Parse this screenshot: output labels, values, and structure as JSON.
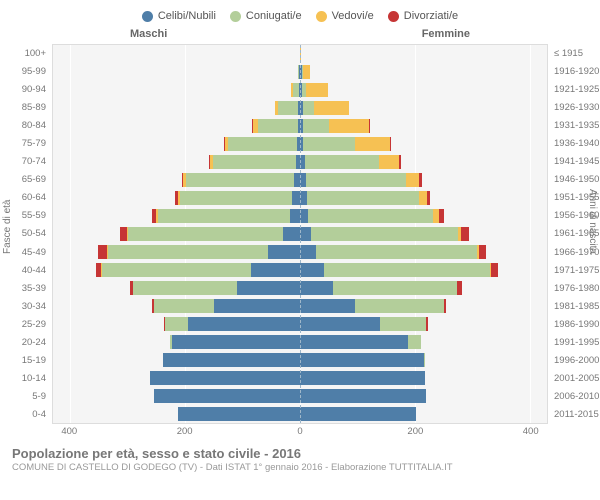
{
  "legend": [
    {
      "label": "Celibi/Nubili",
      "color": "#4f7ea8"
    },
    {
      "label": "Coniugati/e",
      "color": "#b3ce9a"
    },
    {
      "label": "Vedovi/e",
      "color": "#f6c153"
    },
    {
      "label": "Divorziati/e",
      "color": "#c63535"
    }
  ],
  "side_left_label": "Maschi",
  "side_right_label": "Femmine",
  "axis_title_left": "Fasce di età",
  "axis_title_right": "Anni di nascita",
  "title": "Popolazione per età, sesso e stato civile - 2016",
  "subtitle": "COMUNE DI CASTELLO DI GODEGO (TV) - Dati ISTAT 1° gennaio 2016 - Elaborazione TUTTITALIA.IT",
  "x_ticks": [
    -400,
    -200,
    0,
    200,
    400
  ],
  "x_tick_labels": [
    "400",
    "200",
    "0",
    "200",
    "400"
  ],
  "x_max": 430,
  "grid_color": "#ffffff",
  "plot_bg": "#f5f5f5",
  "age_groups": [
    "100+",
    "95-99",
    "90-94",
    "85-89",
    "80-84",
    "75-79",
    "70-74",
    "65-69",
    "60-64",
    "55-59",
    "50-54",
    "45-49",
    "40-44",
    "35-39",
    "30-34",
    "25-29",
    "20-24",
    "15-19",
    "10-14",
    "5-9",
    "0-4"
  ],
  "birth_groups": [
    "≤ 1915",
    "1916-1920",
    "1921-1925",
    "1926-1930",
    "1931-1935",
    "1936-1940",
    "1941-1945",
    "1946-1950",
    "1951-1955",
    "1956-1960",
    "1961-1965",
    "1966-1970",
    "1971-1975",
    "1976-1980",
    "1981-1985",
    "1986-1990",
    "1991-1995",
    "1996-2000",
    "2001-2005",
    "2006-2010",
    "2011-2015"
  ],
  "rows": [
    {
      "m": {
        "celibi": 0,
        "coniugati": 0,
        "vedovi": 0,
        "divorziati": 0
      },
      "f": {
        "celibi": 0,
        "coniugati": 0,
        "vedovi": 2,
        "divorziati": 0
      }
    },
    {
      "m": {
        "celibi": 1,
        "coniugati": 2,
        "vedovi": 0,
        "divorziati": 0
      },
      "f": {
        "celibi": 3,
        "coniugati": 2,
        "vedovi": 12,
        "divorziati": 0
      }
    },
    {
      "m": {
        "celibi": 2,
        "coniugati": 10,
        "vedovi": 4,
        "divorziati": 0
      },
      "f": {
        "celibi": 4,
        "coniugati": 6,
        "vedovi": 38,
        "divorziati": 0
      }
    },
    {
      "m": {
        "celibi": 3,
        "coniugati": 35,
        "vedovi": 6,
        "divorziati": 0
      },
      "f": {
        "celibi": 5,
        "coniugati": 20,
        "vedovi": 60,
        "divorziati": 0
      }
    },
    {
      "m": {
        "celibi": 4,
        "coniugati": 70,
        "vedovi": 8,
        "divorziati": 1
      },
      "f": {
        "celibi": 6,
        "coniugati": 45,
        "vedovi": 70,
        "divorziati": 1
      }
    },
    {
      "m": {
        "celibi": 5,
        "coniugati": 120,
        "vedovi": 6,
        "divorziati": 1
      },
      "f": {
        "celibi": 6,
        "coniugati": 90,
        "vedovi": 60,
        "divorziati": 2
      }
    },
    {
      "m": {
        "celibi": 7,
        "coniugati": 145,
        "vedovi": 5,
        "divorziati": 2
      },
      "f": {
        "celibi": 8,
        "coniugati": 130,
        "vedovi": 35,
        "divorziati": 3
      }
    },
    {
      "m": {
        "celibi": 10,
        "coniugati": 188,
        "vedovi": 5,
        "divorziati": 3
      },
      "f": {
        "celibi": 10,
        "coniugati": 175,
        "vedovi": 22,
        "divorziati": 5
      }
    },
    {
      "m": {
        "celibi": 14,
        "coniugati": 195,
        "vedovi": 3,
        "divorziati": 5
      },
      "f": {
        "celibi": 12,
        "coniugati": 195,
        "vedovi": 14,
        "divorziati": 6
      }
    },
    {
      "m": {
        "celibi": 18,
        "coniugati": 230,
        "vedovi": 2,
        "divorziati": 8
      },
      "f": {
        "celibi": 14,
        "coniugati": 218,
        "vedovi": 10,
        "divorziati": 8
      }
    },
    {
      "m": {
        "celibi": 30,
        "coniugati": 270,
        "vedovi": 2,
        "divorziati": 12
      },
      "f": {
        "celibi": 20,
        "coniugati": 255,
        "vedovi": 6,
        "divorziati": 14
      }
    },
    {
      "m": {
        "celibi": 55,
        "coniugati": 280,
        "vedovi": 1,
        "divorziati": 15
      },
      "f": {
        "celibi": 28,
        "coniugati": 280,
        "vedovi": 4,
        "divorziati": 12
      }
    },
    {
      "m": {
        "celibi": 85,
        "coniugati": 260,
        "vedovi": 1,
        "divorziati": 10
      },
      "f": {
        "celibi": 42,
        "coniugati": 288,
        "vedovi": 3,
        "divorziati": 12
      }
    },
    {
      "m": {
        "celibi": 110,
        "coniugati": 180,
        "vedovi": 0,
        "divorziati": 6
      },
      "f": {
        "celibi": 58,
        "coniugati": 215,
        "vedovi": 1,
        "divorziati": 8
      }
    },
    {
      "m": {
        "celibi": 150,
        "coniugati": 105,
        "vedovi": 0,
        "divorziati": 3
      },
      "f": {
        "celibi": 95,
        "coniugati": 155,
        "vedovi": 1,
        "divorziati": 4
      }
    },
    {
      "m": {
        "celibi": 195,
        "coniugati": 40,
        "vedovi": 0,
        "divorziati": 1
      },
      "f": {
        "celibi": 140,
        "coniugati": 80,
        "vedovi": 0,
        "divorziati": 2
      }
    },
    {
      "m": {
        "celibi": 222,
        "coniugati": 5,
        "vedovi": 0,
        "divorziati": 0
      },
      "f": {
        "celibi": 188,
        "coniugati": 22,
        "vedovi": 0,
        "divorziati": 0
      }
    },
    {
      "m": {
        "celibi": 238,
        "coniugati": 0,
        "vedovi": 0,
        "divorziati": 0
      },
      "f": {
        "celibi": 215,
        "coniugati": 2,
        "vedovi": 0,
        "divorziati": 0
      }
    },
    {
      "m": {
        "celibi": 262,
        "coniugati": 0,
        "vedovi": 0,
        "divorziati": 0
      },
      "f": {
        "celibi": 218,
        "coniugati": 0,
        "vedovi": 0,
        "divorziati": 0
      }
    },
    {
      "m": {
        "celibi": 255,
        "coniugati": 0,
        "vedovi": 0,
        "divorziati": 0
      },
      "f": {
        "celibi": 220,
        "coniugati": 0,
        "vedovi": 0,
        "divorziati": 0
      }
    },
    {
      "m": {
        "celibi": 212,
        "coniugati": 0,
        "vedovi": 0,
        "divorziati": 0
      },
      "f": {
        "celibi": 202,
        "coniugati": 0,
        "vedovi": 0,
        "divorziati": 0
      }
    }
  ]
}
